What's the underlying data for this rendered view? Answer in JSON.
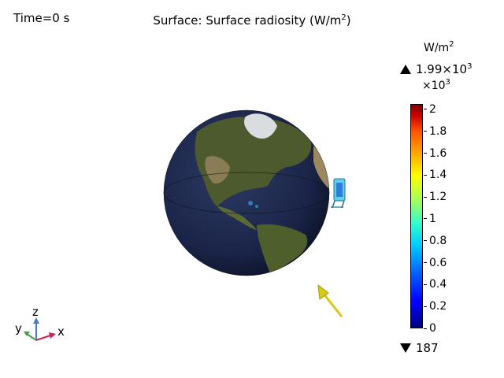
{
  "time_label": "Time=0 s",
  "plot_title": {
    "prefix": "Surface:",
    "text": "Surface radiosity (W/m",
    "sup": "2",
    "suffix": ")"
  },
  "legend": {
    "unit": "W/m",
    "unit_sup": "2",
    "max_label": "1.99×10",
    "max_sup": "3",
    "multiplier": "×10",
    "multiplier_sup": "3",
    "min_label": "187",
    "ticks": [
      "2",
      "1.8",
      "1.6",
      "1.4",
      "1.2",
      "1",
      "0.8",
      "0.6",
      "0.4",
      "0.2",
      "0"
    ],
    "range": [
      0,
      2.05
    ]
  },
  "axes": {
    "x": "x",
    "y": "y",
    "z": "z"
  },
  "colors": {
    "arrow": "#e0d21c",
    "satellite": "#2f7de0",
    "axis_x": "#cc2255",
    "axis_y": "#44a044",
    "axis_z": "#4c7ac0"
  }
}
